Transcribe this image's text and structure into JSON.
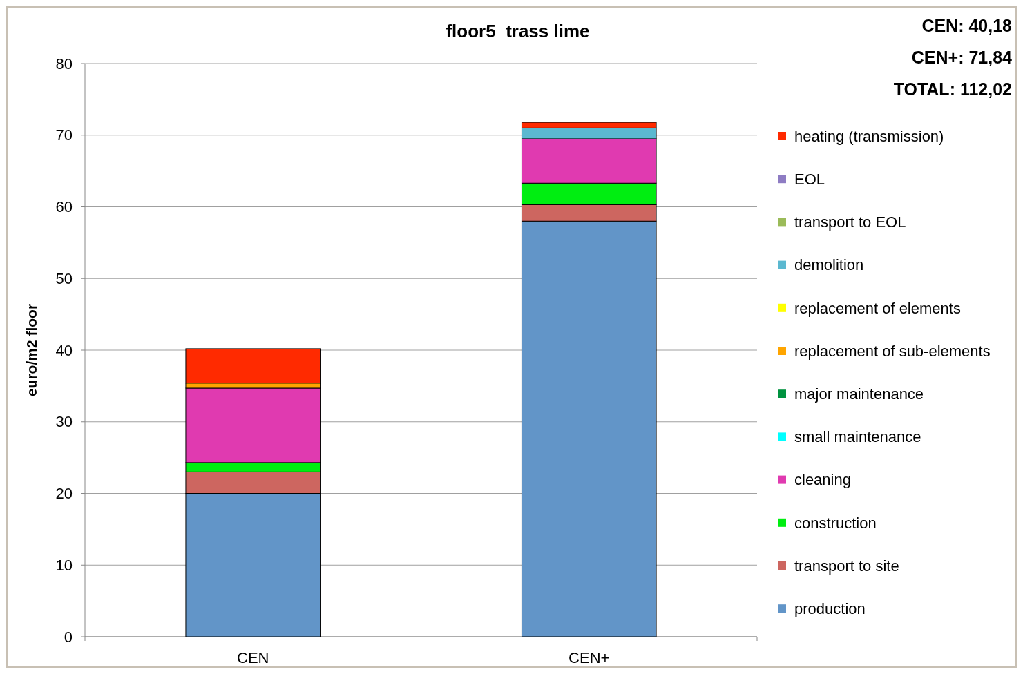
{
  "chart_data": {
    "type": "bar",
    "title": "floor5_trass lime",
    "ylabel": "euro/m2 floor",
    "categories": [
      "CEN",
      "CEN+"
    ],
    "stacked": true,
    "ylim": [
      0,
      80
    ],
    "yticks": [
      0,
      10,
      20,
      30,
      40,
      50,
      60,
      70,
      80
    ],
    "grid": "y",
    "legend": "right",
    "annotations": [
      "CEN: 40,18",
      "CEN+: 71,84",
      "TOTAL: 112,02"
    ],
    "series": [
      {
        "name": "production",
        "color": "#6295c8",
        "values": [
          20.0,
          58.0
        ]
      },
      {
        "name": "transport to site",
        "color": "#cd6660",
        "values": [
          3.0,
          2.3
        ]
      },
      {
        "name": "construction",
        "color": "#00ee11",
        "values": [
          1.3,
          3.0
        ]
      },
      {
        "name": "cleaning",
        "color": "#e03ab0",
        "values": [
          10.4,
          6.2
        ]
      },
      {
        "name": "small maintenance",
        "color": "#00ffff",
        "values": [
          0,
          0
        ]
      },
      {
        "name": "major maintenance",
        "color": "#00923f",
        "values": [
          0,
          0
        ]
      },
      {
        "name": "replacement of sub-elements",
        "color": "#ffa500",
        "values": [
          0.7,
          0
        ]
      },
      {
        "name": "replacement of elements",
        "color": "#ffff00",
        "values": [
          0,
          0
        ]
      },
      {
        "name": "demolition",
        "color": "#5bb8d0",
        "values": [
          0,
          1.5
        ]
      },
      {
        "name": "transport to EOL",
        "color": "#9bbb59",
        "values": [
          0,
          0
        ]
      },
      {
        "name": "EOL",
        "color": "#8e7cc3",
        "values": [
          0,
          0
        ]
      },
      {
        "name": "heating (transmission)",
        "color": "#ff2a00",
        "values": [
          4.8,
          0.8
        ]
      }
    ]
  }
}
